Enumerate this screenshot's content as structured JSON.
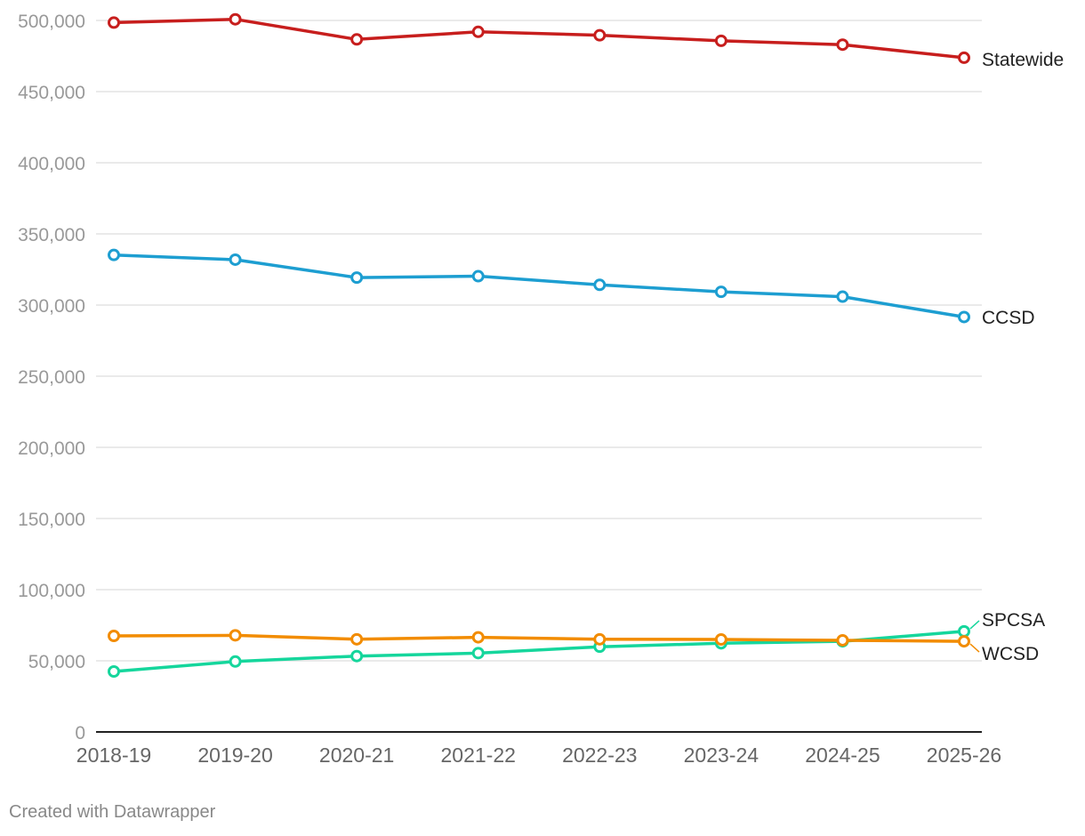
{
  "chart_data": {
    "type": "line",
    "title": "",
    "xlabel": "",
    "ylabel": "",
    "categories": [
      "2018-19",
      "2019-20",
      "2020-21",
      "2021-22",
      "2022-23",
      "2023-24",
      "2024-25",
      "2025-26"
    ],
    "ylim": [
      0,
      500000
    ],
    "yticks": [
      0,
      50000,
      100000,
      150000,
      200000,
      250000,
      300000,
      350000,
      400000,
      450000,
      500000
    ],
    "ytick_labels": [
      "0",
      "50,000",
      "100,000",
      "150,000",
      "200,000",
      "250,000",
      "300,000",
      "350,000",
      "400,000",
      "450,000",
      "500,000"
    ],
    "grid": true,
    "series": [
      {
        "name": "Statewide",
        "color": "#c71e1d",
        "values": [
          498500,
          500800,
          486700,
          492000,
          489600,
          485700,
          483000,
          473800
        ]
      },
      {
        "name": "CCSD",
        "color": "#1d9ed1",
        "values": [
          335200,
          331900,
          319300,
          320300,
          314200,
          309300,
          305900,
          291600
        ]
      },
      {
        "name": "SPCSA",
        "color": "#15d69c",
        "values": [
          42500,
          49500,
          53300,
          55400,
          59900,
          62300,
          63700,
          70700
        ]
      },
      {
        "name": "WCSD",
        "color": "#f28c00",
        "values": [
          67500,
          67900,
          65100,
          66500,
          65100,
          65000,
          64400,
          63700
        ]
      }
    ]
  },
  "credit": "Created with Datawrapper"
}
